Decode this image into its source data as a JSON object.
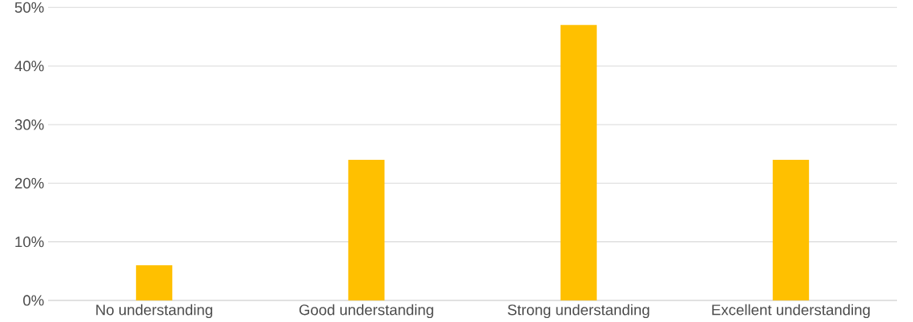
{
  "chart_data": {
    "type": "bar",
    "categories": [
      "No understanding",
      "Good understanding",
      "Strong understanding",
      "Excellent understanding"
    ],
    "values": [
      6,
      24,
      47,
      24
    ],
    "color": "#ffc000",
    "ylim": [
      0,
      50
    ],
    "yticks": [
      {
        "value": 0,
        "label": "0%"
      },
      {
        "value": 10,
        "label": "10%"
      },
      {
        "value": 20,
        "label": "20%"
      },
      {
        "value": 30,
        "label": "30%"
      },
      {
        "value": 40,
        "label": "40%"
      },
      {
        "value": 50,
        "label": "50%"
      }
    ],
    "grid": "y"
  }
}
